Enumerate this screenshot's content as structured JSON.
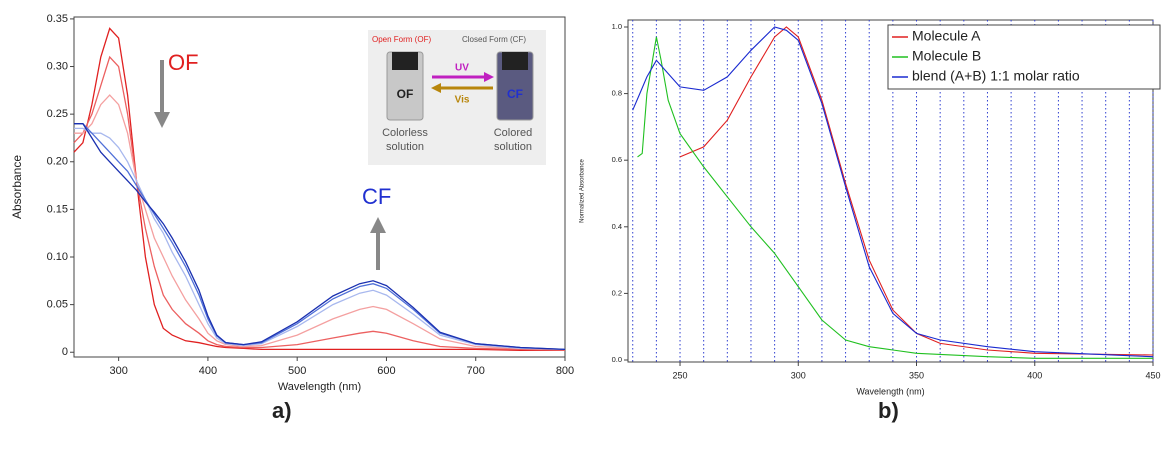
{
  "chart_data": [
    {
      "type": "line",
      "panel_label": "a)",
      "xlabel": "Wavelength (nm)",
      "ylabel": "Absorbance",
      "xlim": [
        250,
        800
      ],
      "xticks": [
        300,
        400,
        500,
        600,
        700,
        800
      ],
      "ylim": [
        -0.005,
        0.352
      ],
      "yticks": [
        0,
        0.05,
        {
          "value": 0.1,
          "label": "0.10"
        },
        0.15,
        {
          "value": 0.2,
          "label": "0.20"
        },
        0.25,
        {
          "value": 0.3,
          "label": "0.30"
        },
        0.35
      ],
      "annotations": [
        "OF",
        "CF"
      ],
      "inset": {
        "open_title": "Open Form (OF)",
        "closed_title": "Closed Form (CF)",
        "uv": "UV",
        "vis": "Vis",
        "open_vial": "OF",
        "closed_vial": "CF",
        "open_caption": "Colorless solution",
        "closed_caption": "Colored solution"
      },
      "x": [
        250,
        260,
        270,
        280,
        290,
        300,
        310,
        320,
        330,
        340,
        350,
        360,
        375,
        390,
        400,
        410,
        420,
        440,
        460,
        500,
        540,
        570,
        585,
        600,
        630,
        660,
        700,
        750,
        800
      ],
      "series": [
        {
          "color": "#e02020",
          "values": [
            0.21,
            0.22,
            0.26,
            0.31,
            0.34,
            0.33,
            0.27,
            0.18,
            0.1,
            0.05,
            0.025,
            0.018,
            0.012,
            0.01,
            0.008,
            0.006,
            0.005,
            0.004,
            0.003,
            0.003,
            0.003,
            0.003,
            0.003,
            0.003,
            0.003,
            0.003,
            0.003,
            0.002,
            0.002
          ]
        },
        {
          "color": "#ec6060",
          "values": [
            0.22,
            0.23,
            0.25,
            0.28,
            0.31,
            0.3,
            0.25,
            0.18,
            0.13,
            0.09,
            0.06,
            0.045,
            0.03,
            0.02,
            0.012,
            0.008,
            0.006,
            0.005,
            0.005,
            0.008,
            0.015,
            0.02,
            0.022,
            0.02,
            0.012,
            0.006,
            0.004,
            0.003,
            0.002
          ]
        },
        {
          "color": "#f4a0a0",
          "values": [
            0.23,
            0.23,
            0.24,
            0.26,
            0.27,
            0.26,
            0.23,
            0.18,
            0.15,
            0.12,
            0.1,
            0.08,
            0.055,
            0.035,
            0.02,
            0.012,
            0.008,
            0.006,
            0.007,
            0.018,
            0.035,
            0.045,
            0.048,
            0.045,
            0.03,
            0.014,
            0.006,
            0.004,
            0.003
          ]
        },
        {
          "color": "#a8b8ee",
          "values": [
            0.235,
            0.235,
            0.23,
            0.23,
            0.225,
            0.215,
            0.2,
            0.18,
            0.16,
            0.14,
            0.125,
            0.105,
            0.08,
            0.05,
            0.03,
            0.015,
            0.009,
            0.007,
            0.009,
            0.027,
            0.05,
            0.062,
            0.065,
            0.06,
            0.04,
            0.018,
            0.008,
            0.004,
            0.003
          ]
        },
        {
          "color": "#5070d8",
          "values": [
            0.24,
            0.24,
            0.23,
            0.22,
            0.21,
            0.2,
            0.19,
            0.175,
            0.16,
            0.145,
            0.13,
            0.115,
            0.09,
            0.06,
            0.035,
            0.017,
            0.01,
            0.008,
            0.01,
            0.03,
            0.056,
            0.069,
            0.072,
            0.067,
            0.045,
            0.02,
            0.009,
            0.005,
            0.003
          ]
        },
        {
          "color": "#1a30b0",
          "values": [
            0.24,
            0.24,
            0.225,
            0.21,
            0.2,
            0.19,
            0.18,
            0.17,
            0.158,
            0.147,
            0.135,
            0.12,
            0.095,
            0.065,
            0.038,
            0.018,
            0.01,
            0.008,
            0.011,
            0.032,
            0.059,
            0.072,
            0.075,
            0.07,
            0.047,
            0.021,
            0.009,
            0.005,
            0.003
          ]
        }
      ]
    },
    {
      "type": "line",
      "panel_label": "b)",
      "xlabel": "Wavelength (nm)",
      "ylabel": "Normalized Absorbance",
      "xlim": [
        228,
        450
      ],
      "xticks": [
        250,
        300,
        350,
        400,
        450
      ],
      "xgrid": [
        230,
        240,
        250,
        260,
        270,
        280,
        290,
        300,
        310,
        320,
        330,
        340,
        350,
        360,
        370,
        380,
        390,
        400,
        410,
        420,
        430,
        440,
        450
      ],
      "ylim": [
        -0.006,
        1.021
      ],
      "yticks": [
        {
          "value": 0,
          "label": "0.0"
        },
        0.2,
        0.4,
        0.6,
        0.8,
        {
          "value": 1,
          "label": "1.0"
        }
      ],
      "legend": "upper right",
      "series": [
        {
          "name": "Molecule A",
          "color": "#e02020",
          "x": [
            250,
            260,
            270,
            280,
            290,
            295,
            300,
            310,
            320,
            330,
            340,
            350,
            360,
            380,
            400,
            450
          ],
          "values": [
            0.61,
            0.64,
            0.72,
            0.85,
            0.97,
            1.0,
            0.97,
            0.78,
            0.53,
            0.3,
            0.15,
            0.08,
            0.05,
            0.03,
            0.02,
            0.015
          ]
        },
        {
          "name": "Molecule B",
          "color": "#20c020",
          "x": [
            232,
            234,
            236,
            240,
            242,
            245,
            250,
            260,
            270,
            280,
            290,
            300,
            310,
            320,
            330,
            340,
            350,
            380,
            400,
            450
          ],
          "values": [
            0.61,
            0.62,
            0.8,
            0.97,
            0.9,
            0.78,
            0.68,
            0.58,
            0.49,
            0.4,
            0.32,
            0.22,
            0.12,
            0.06,
            0.04,
            0.03,
            0.02,
            0.01,
            0.005,
            0.005
          ]
        },
        {
          "name": "blend (A+B) 1:1 molar ratio",
          "color": "#1a2ad0",
          "x": [
            230,
            233,
            236,
            240,
            245,
            250,
            260,
            270,
            280,
            290,
            295,
            300,
            310,
            320,
            330,
            340,
            350,
            360,
            380,
            400,
            450
          ],
          "values": [
            0.75,
            0.8,
            0.85,
            0.9,
            0.86,
            0.82,
            0.81,
            0.85,
            0.93,
            1.0,
            0.99,
            0.96,
            0.77,
            0.52,
            0.28,
            0.14,
            0.08,
            0.06,
            0.04,
            0.025,
            0.01
          ]
        }
      ]
    }
  ]
}
